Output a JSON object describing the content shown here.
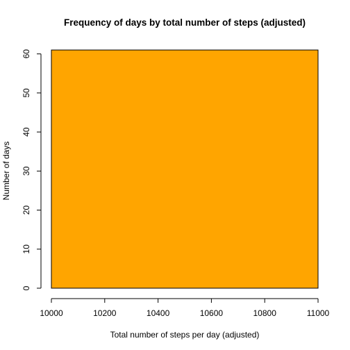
{
  "chart_data": {
    "type": "bar",
    "title": "Frequency of days by total number of steps (adjusted)",
    "xlabel": "Total number of steps per day (adjusted)",
    "ylabel": "Number of days",
    "xlim": [
      10000,
      11000
    ],
    "ylim": [
      0,
      61
    ],
    "x_ticks": [
      10000,
      10200,
      10400,
      10600,
      10800,
      11000
    ],
    "y_ticks": [
      0,
      10,
      20,
      30,
      40,
      50,
      60
    ],
    "bins": [
      {
        "x0": 10000,
        "x1": 11000,
        "count": 61
      }
    ],
    "bar_color": "#FFA500",
    "border_color": "#000000",
    "grid": false,
    "legend": false
  }
}
